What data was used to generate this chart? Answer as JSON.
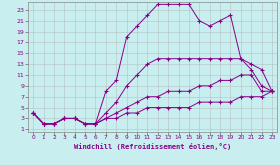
{
  "xlabel": "Windchill (Refroidissement éolien,°C)",
  "bg_color": "#c8eef0",
  "grid_color": "#b0b0b0",
  "line_color": "#880088",
  "xlim": [
    -0.5,
    23.5
  ],
  "ylim": [
    0.5,
    24.5
  ],
  "xticks": [
    0,
    1,
    2,
    3,
    4,
    5,
    6,
    7,
    8,
    9,
    10,
    11,
    12,
    13,
    14,
    15,
    16,
    17,
    18,
    19,
    20,
    21,
    22,
    23
  ],
  "yticks": [
    1,
    3,
    5,
    7,
    9,
    11,
    13,
    15,
    17,
    19,
    21,
    23
  ],
  "s1_x": [
    0,
    1,
    2,
    3,
    4,
    5,
    6,
    7,
    8,
    9,
    10,
    11,
    12,
    13,
    14,
    15,
    16,
    17,
    18,
    19,
    20,
    21,
    22,
    23
  ],
  "s1_y": [
    4,
    2,
    2,
    3,
    3,
    2,
    2,
    8,
    10,
    18,
    20,
    22,
    24,
    24,
    24,
    24,
    21,
    20,
    21,
    22,
    14,
    12,
    9,
    8
  ],
  "s2_x": [
    0,
    1,
    2,
    3,
    4,
    5,
    6,
    7,
    8,
    9,
    10,
    11,
    12,
    13,
    14,
    15,
    16,
    17,
    18,
    19,
    20,
    21,
    22,
    23
  ],
  "s2_y": [
    4,
    2,
    2,
    3,
    3,
    2,
    2,
    4,
    6,
    9,
    11,
    13,
    14,
    14,
    14,
    14,
    14,
    14,
    14,
    14,
    14,
    13,
    12,
    8
  ],
  "s3_x": [
    0,
    1,
    2,
    3,
    4,
    5,
    6,
    7,
    8,
    9,
    10,
    11,
    12,
    13,
    14,
    15,
    16,
    17,
    18,
    19,
    20,
    21,
    22,
    23
  ],
  "s3_y": [
    4,
    2,
    2,
    3,
    3,
    2,
    2,
    3,
    4,
    5,
    6,
    7,
    7,
    8,
    8,
    8,
    9,
    9,
    10,
    10,
    11,
    11,
    8,
    8
  ],
  "s4_x": [
    0,
    1,
    2,
    3,
    4,
    5,
    6,
    7,
    8,
    9,
    10,
    11,
    12,
    13,
    14,
    15,
    16,
    17,
    18,
    19,
    20,
    21,
    22,
    23
  ],
  "s4_y": [
    4,
    2,
    2,
    3,
    3,
    2,
    2,
    3,
    3,
    4,
    4,
    5,
    5,
    5,
    5,
    5,
    6,
    6,
    6,
    6,
    7,
    7,
    7,
    8
  ]
}
